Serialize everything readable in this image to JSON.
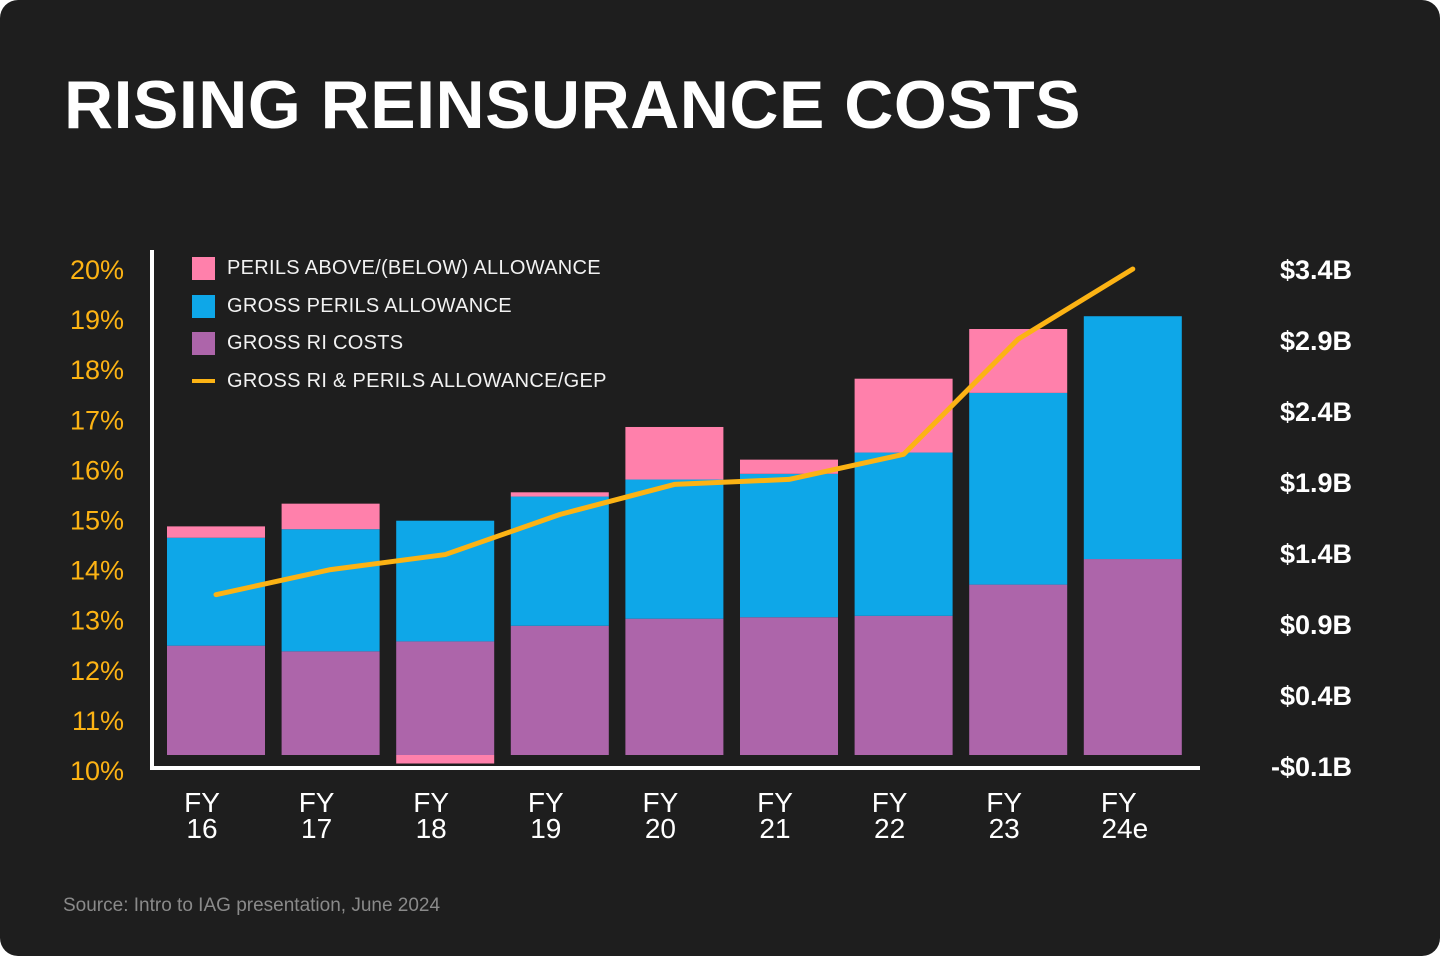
{
  "title": "RISING REINSURANCE COSTS",
  "source": "Source: Intro to IAG presentation, June 2024",
  "chart_data": {
    "type": "bar",
    "stacked": true,
    "title": "RISING REINSURANCE COSTS",
    "categories": [
      "FY 16",
      "FY 17",
      "FY 18",
      "FY 19",
      "FY 20",
      "FY 21",
      "FY 22",
      "FY 23",
      "FY 24e"
    ],
    "category_lines": [
      [
        "FY",
        "16"
      ],
      [
        "FY",
        "17"
      ],
      [
        "FY",
        "18"
      ],
      [
        "FY",
        "19"
      ],
      [
        "FY",
        "20"
      ],
      [
        "FY",
        "21"
      ],
      [
        "FY",
        "22"
      ],
      [
        "FY",
        "23"
      ],
      [
        "FY",
        "24e"
      ]
    ],
    "series": [
      {
        "name": "GROSS RI COSTS",
        "type": "bar",
        "axis": "right",
        "color": "#ad65aa",
        "values": [
          0.77,
          0.73,
          0.8,
          0.91,
          0.96,
          0.97,
          0.98,
          1.2,
          1.38
        ]
      },
      {
        "name": "GROSS PERILS ALLOWANCE",
        "type": "bar",
        "axis": "right",
        "color": "#0ea7e8",
        "values": [
          0.76,
          0.86,
          0.85,
          0.91,
          0.98,
          1.01,
          1.15,
          1.35,
          1.71
        ]
      },
      {
        "name": "PERILS ABOVE/(BELOW) ALLOWANCE",
        "type": "bar",
        "axis": "right",
        "color": "#ff80ab",
        "values": [
          0.08,
          0.18,
          -0.06,
          0.03,
          0.37,
          0.1,
          0.52,
          0.45,
          0
        ]
      },
      {
        "name": "GROSS RI & PERILS ALLOWANCE/GEP",
        "type": "line",
        "axis": "left",
        "color": "#fcb314",
        "values": [
          13.5,
          14.0,
          14.3,
          15.1,
          15.7,
          15.8,
          16.3,
          18.6,
          20.0
        ]
      }
    ],
    "legend_order": [
      "PERILS ABOVE/(BELOW) ALLOWANCE",
      "GROSS PERILS ALLOWANCE",
      "GROSS RI COSTS",
      "GROSS RI & PERILS ALLOWANCE/GEP"
    ],
    "legend_placement": "top-left",
    "left_axis": {
      "ylim": [
        10,
        20
      ],
      "ticks": [
        "20%",
        "19%",
        "18%",
        "17%",
        "16%",
        "15%",
        "14%",
        "13%",
        "12%",
        "11%",
        "10%"
      ],
      "tick_values": [
        20,
        19,
        18,
        17,
        16,
        15,
        14,
        13,
        12,
        11,
        10
      ],
      "color": "#fcb314"
    },
    "right_axis": {
      "ticks": [
        "$3.4B",
        "$2.9B",
        "$2.4B",
        "$1.9B",
        "$1.4B",
        "$0.9B",
        "$0.4B",
        "-$0.1B"
      ],
      "tick_values": [
        3.4,
        2.9,
        2.4,
        1.9,
        1.4,
        0.9,
        0.4,
        -0.1
      ],
      "unit": "$B",
      "color": "#ffffff"
    },
    "grid": false
  }
}
